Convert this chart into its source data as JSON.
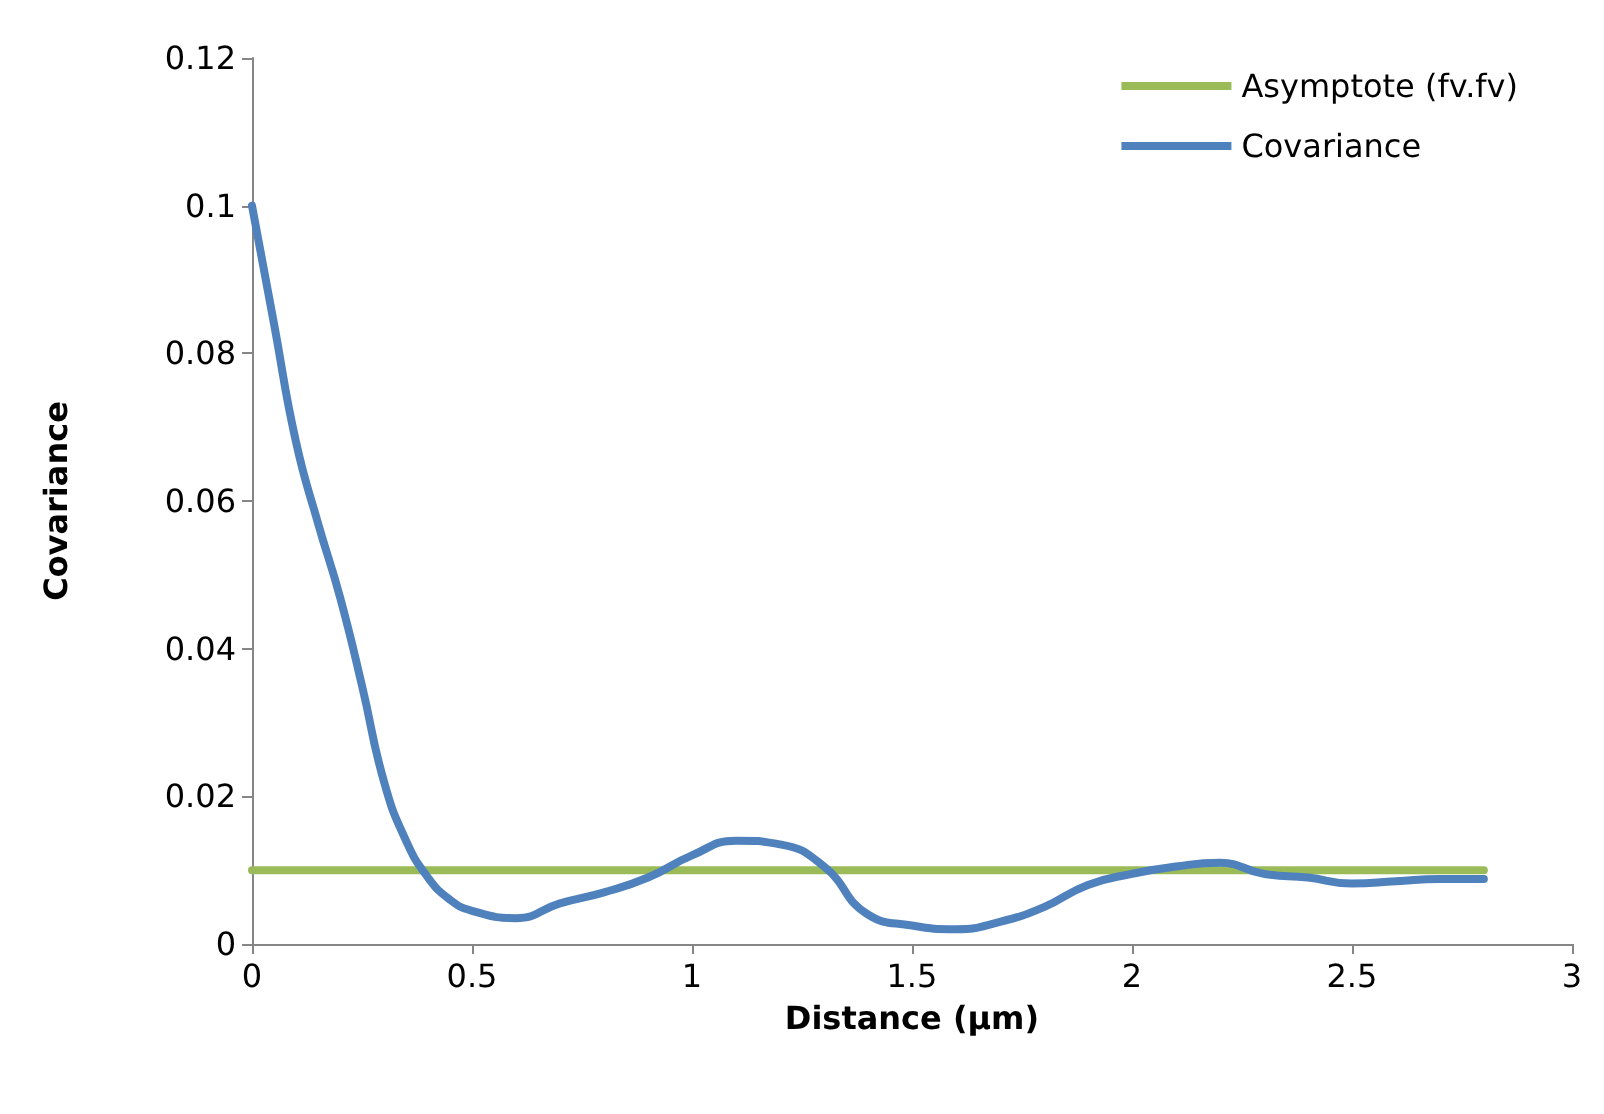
{
  "chart_data": {
    "type": "line",
    "xlabel": "Distance (µm)",
    "ylabel": "Covariance",
    "xlim": [
      0,
      3
    ],
    "xticks": [
      0,
      0.5,
      1,
      1.5,
      2,
      2.5,
      3
    ],
    "ylim": [
      0,
      0.12
    ],
    "yticks": [
      0,
      0.02,
      0.04,
      0.06,
      0.08,
      0.1,
      0.12
    ],
    "grid": false,
    "legend": "top right",
    "marker": "none",
    "line_style": "solid",
    "series": [
      {
        "name": "Asymptote (fv.fv)",
        "color": "#9bbb59",
        "x": [
          0,
          2.8
        ],
        "values": [
          0.01,
          0.01
        ]
      },
      {
        "name": "Covariance",
        "color": "#4f81bd",
        "x": [
          0,
          0.05,
          0.1,
          0.15,
          0.2,
          0.25,
          0.3,
          0.35,
          0.4,
          0.45,
          0.5,
          0.6,
          0.7,
          0.8,
          0.9,
          1.0,
          1.1,
          1.2,
          1.3,
          1.4,
          1.5,
          1.6,
          1.7,
          1.8,
          1.9,
          2.0,
          2.1,
          2.2,
          2.3,
          2.4,
          2.5,
          2.6,
          2.7,
          2.8
        ],
        "values": [
          0.1,
          0.084,
          0.068,
          0.057,
          0.047,
          0.035,
          0.022,
          0.014,
          0.009,
          0.006,
          0.0045,
          0.0035,
          0.0055,
          0.007,
          0.009,
          0.012,
          0.014,
          0.0135,
          0.0105,
          0.004,
          0.0025,
          0.002,
          0.003,
          0.005,
          0.008,
          0.0095,
          0.0105,
          0.011,
          0.0095,
          0.009,
          0.0082,
          0.0085,
          0.0088,
          0.0088
        ]
      }
    ]
  }
}
